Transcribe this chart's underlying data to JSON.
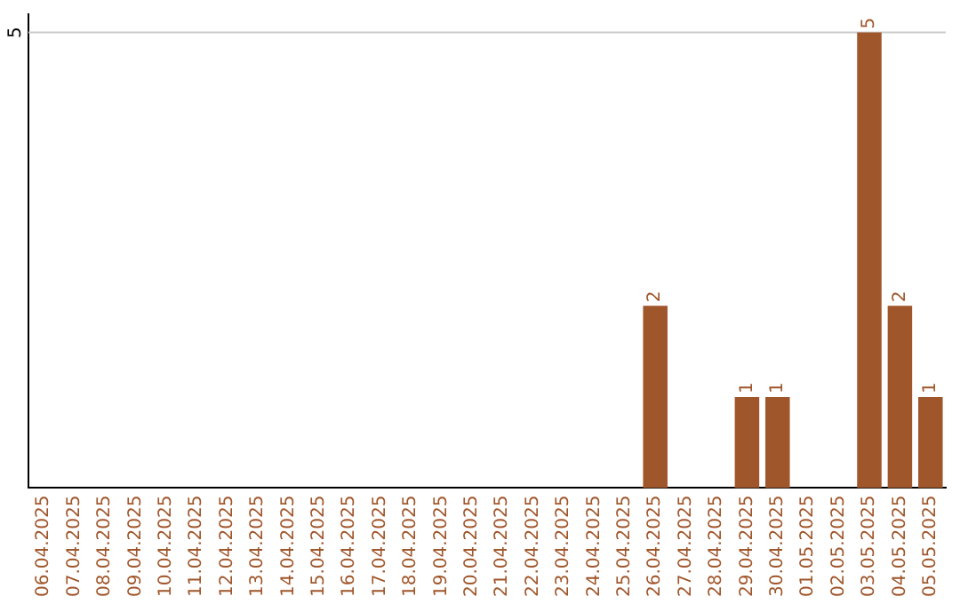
{
  "chart_data": {
    "type": "bar",
    "categories": [
      "06.04.2025",
      "07.04.2025",
      "08.04.2025",
      "09.04.2025",
      "10.04.2025",
      "11.04.2025",
      "12.04.2025",
      "13.04.2025",
      "14.04.2025",
      "15.04.2025",
      "16.04.2025",
      "17.04.2025",
      "18.04.2025",
      "19.04.2025",
      "20.04.2025",
      "21.04.2025",
      "22.04.2025",
      "23.04.2025",
      "24.04.2025",
      "25.04.2025",
      "26.04.2025",
      "27.04.2025",
      "28.04.2025",
      "29.04.2025",
      "30.04.2025",
      "01.05.2025",
      "02.05.2025",
      "03.05.2025",
      "04.05.2025",
      "05.05.2025"
    ],
    "values": [
      null,
      null,
      null,
      null,
      null,
      null,
      null,
      null,
      null,
      null,
      null,
      null,
      null,
      null,
      null,
      null,
      null,
      null,
      null,
      null,
      2,
      null,
      null,
      1,
      1,
      null,
      null,
      5,
      2,
      1
    ],
    "data_labels": true,
    "color": "#a0562b",
    "ylim": [
      0,
      5.2
    ],
    "ref_lines": [
      {
        "axis": "y",
        "value": 5,
        "label": "5",
        "color": "#cccccc"
      }
    ],
    "legend": false
  }
}
